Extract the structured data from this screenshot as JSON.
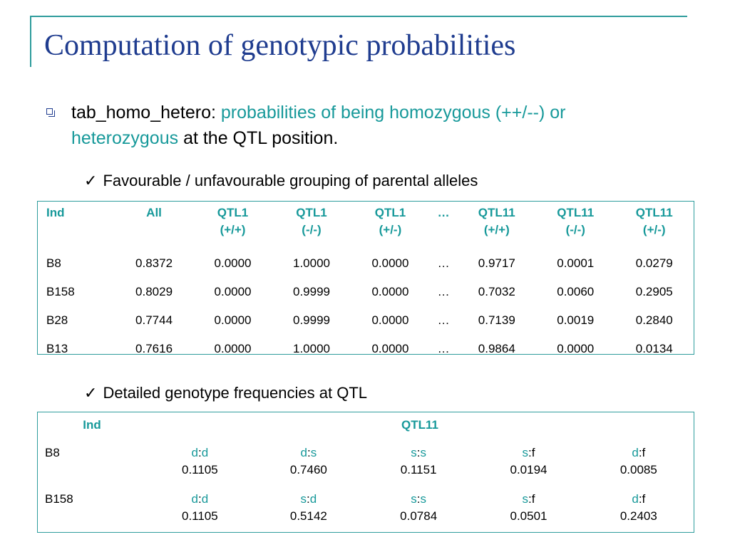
{
  "title": "Computation of genotypic probabilities",
  "bullet": {
    "term": "tab_homo_hetero:",
    "part1": "probabilities of being homozygous (++/--) or",
    "part2": "heterozygous",
    "part3": "at the QTL position."
  },
  "check1": "Favourable / unfavourable grouping of parental alleles",
  "check2": "Detailed genotype frequencies at QTL",
  "check_symbol": "✓",
  "table1": {
    "headers": [
      {
        "line1": "Ind",
        "line2": ""
      },
      {
        "line1": "All",
        "line2": ""
      },
      {
        "line1": "QTL1",
        "line2": "(+/+)"
      },
      {
        "line1": "QTL1",
        "line2": "(-/-)"
      },
      {
        "line1": "QTL1",
        "line2": "(+/-)"
      },
      {
        "line1": "…",
        "line2": ""
      },
      {
        "line1": "QTL11",
        "line2": "(+/+)"
      },
      {
        "line1": "QTL11",
        "line2": "(-/-)"
      },
      {
        "line1": "QTL11",
        "line2": "(+/-)"
      }
    ],
    "rows": [
      [
        "B8",
        "0.8372",
        "0.0000",
        "1.0000",
        "0.0000",
        "…",
        "0.9717",
        "0.0001",
        "0.0279"
      ],
      [
        "B158",
        "0.8029",
        "0.0000",
        "0.9999",
        "0.0000",
        "…",
        "0.7032",
        "0.0060",
        "0.2905"
      ],
      [
        "B28",
        "0.7744",
        "0.0000",
        "0.9999",
        "0.0000",
        "…",
        "0.7139",
        "0.0019",
        "0.2840"
      ],
      [
        "B13",
        "0.7616",
        "0.0000",
        "1.0000",
        "0.0000",
        "…",
        "0.9864",
        "0.0000",
        "0.0134"
      ]
    ]
  },
  "table2": {
    "header_ind": "Ind",
    "header_qtl": "QTL11",
    "rows": [
      {
        "ind": "B8",
        "cells": [
          {
            "a": "d",
            "sep": ":",
            "b": "d",
            "value": "0.1105"
          },
          {
            "a": "d",
            "sep": ":",
            "b": "s",
            "value": "0.7460"
          },
          {
            "a": "s",
            "sep": ":",
            "b": "s",
            "value": "0.1151"
          },
          {
            "a": "s",
            "sep": ":",
            "b": "f",
            "value": "0.0194"
          },
          {
            "a": "d",
            "sep": ":",
            "b": "f",
            "value": "0.0085"
          }
        ]
      },
      {
        "ind": "B158",
        "cells": [
          {
            "a": "d",
            "sep": ":",
            "b": "d",
            "value": "0.1105"
          },
          {
            "a": "s",
            "sep": ":",
            "b": "d",
            "value": "0.5142"
          },
          {
            "a": "s",
            "sep": ":",
            "b": "s",
            "value": "0.0784"
          },
          {
            "a": "s",
            "sep": ":",
            "b": "f",
            "value": "0.0501"
          },
          {
            "a": "d",
            "sep": ":",
            "b": "f",
            "value": "0.2403"
          }
        ]
      }
    ]
  },
  "colors": {
    "title": "#1f3c8f",
    "accent": "#17999a",
    "frame": "#2e9c9c"
  }
}
